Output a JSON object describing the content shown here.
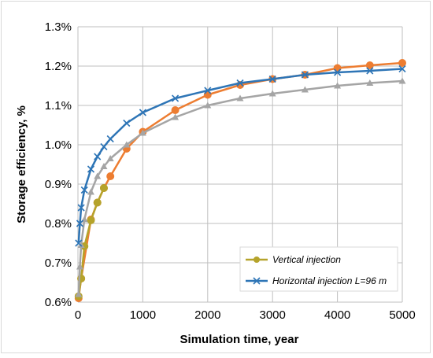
{
  "chart_data": {
    "type": "line",
    "xlabel": "Simulation time, year",
    "ylabel": "Storage efficiency, %",
    "xlim": [
      0,
      5000
    ],
    "ylim": [
      0.6,
      1.3
    ],
    "x_ticks": [
      0,
      1000,
      2000,
      3000,
      4000,
      5000
    ],
    "x_tick_labels": [
      "0",
      "1000",
      "2000",
      "3000",
      "4000",
      "5000"
    ],
    "y_ticks": [
      0.6,
      0.7,
      0.8,
      0.9,
      1.0,
      1.1,
      1.2,
      1.3
    ],
    "y_tick_labels": [
      "0.6%",
      "0.7%",
      "0.8%",
      "0.9%",
      "1.0%",
      "1.1%",
      "1.2%",
      "1.3%"
    ],
    "grid": true,
    "legend_position": "bottom-right",
    "series": [
      {
        "name": "",
        "color": "#ED7D31",
        "marker": "circle",
        "x": [
          10,
          50,
          200,
          300,
          400,
          500,
          750,
          1000,
          1500,
          2000,
          2500,
          3000,
          3500,
          4000,
          4500,
          5000
        ],
        "y": [
          0.61,
          0.66,
          0.81,
          0.853,
          0.89,
          0.92,
          0.99,
          1.033,
          1.088,
          1.127,
          1.152,
          1.167,
          1.178,
          1.195,
          1.202,
          1.208
        ]
      },
      {
        "name": "Vertical injection",
        "color": "#B5A32B",
        "marker": "circle",
        "x": [
          10,
          50,
          100,
          200,
          300,
          400
        ],
        "y": [
          0.615,
          0.66,
          0.742,
          0.808,
          0.853,
          0.89
        ]
      },
      {
        "name": "",
        "color": "#A5A5A5",
        "marker": "triangle",
        "x": [
          10,
          30,
          50,
          100,
          200,
          300,
          400,
          500,
          750,
          1000,
          1500,
          2000,
          2500,
          3000,
          3500,
          4000,
          4500,
          5000
        ],
        "y": [
          0.62,
          0.69,
          0.745,
          0.81,
          0.88,
          0.92,
          0.945,
          0.965,
          1.0,
          1.03,
          1.07,
          1.1,
          1.118,
          1.13,
          1.14,
          1.15,
          1.157,
          1.162
        ]
      },
      {
        "name": "Horizontal injection L=96 m",
        "color": "#2E75B6",
        "marker": "x",
        "x": [
          10,
          30,
          50,
          100,
          200,
          300,
          400,
          500,
          750,
          1000,
          1500,
          2000,
          2500,
          3000,
          3500,
          4000,
          4500,
          5000
        ],
        "y": [
          0.75,
          0.8,
          0.84,
          0.885,
          0.938,
          0.97,
          0.995,
          1.015,
          1.055,
          1.082,
          1.118,
          1.138,
          1.157,
          1.167,
          1.178,
          1.184,
          1.188,
          1.193
        ]
      }
    ]
  }
}
